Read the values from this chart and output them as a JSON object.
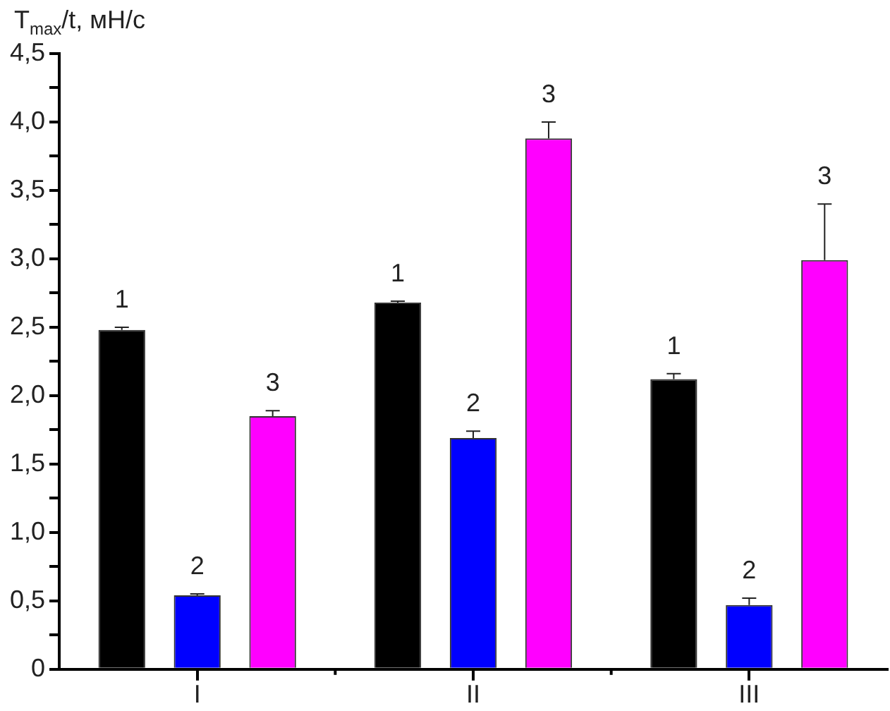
{
  "chart_data": {
    "type": "bar",
    "ylabel": "T$_{max}$/t, мН/с",
    "categories": [
      "I",
      "II",
      "III"
    ],
    "series": [
      {
        "name": "1",
        "color": "#000000",
        "values": [
          2.48,
          2.68,
          2.12
        ],
        "errors": [
          [
            2.48,
            2.5
          ],
          [
            2.68,
            2.69
          ],
          [
            2.12,
            2.16
          ]
        ]
      },
      {
        "name": "2",
        "color": "#0000ff",
        "values": [
          0.54,
          1.69,
          0.47
        ],
        "errors": [
          [
            0.54,
            0.55
          ],
          [
            1.69,
            1.74
          ],
          [
            0.47,
            0.52
          ]
        ]
      },
      {
        "name": "3",
        "color": "#ff00ff",
        "values": [
          1.85,
          3.88,
          2.99
        ],
        "errors": [
          [
            1.85,
            1.89
          ],
          [
            3.88,
            4.0
          ],
          [
            2.99,
            3.4
          ]
        ]
      }
    ],
    "ylim": [
      0,
      4.5
    ],
    "yticks": [
      0,
      {
        "value": 0.25,
        "label": null
      },
      {
        "value": 0.5,
        "label": "0,5"
      },
      {
        "value": 0.75,
        "label": null
      },
      {
        "value": 1,
        "label": "1,0"
      },
      {
        "value": 1.25,
        "label": null
      },
      {
        "value": 1.5,
        "label": "1,5"
      },
      {
        "value": 1.75,
        "label": null
      },
      {
        "value": 2,
        "label": "2,0"
      },
      {
        "value": 2.25,
        "label": null
      },
      {
        "value": 2.5,
        "label": "2,5"
      },
      {
        "value": 2.75,
        "label": null
      },
      {
        "value": 3,
        "label": "3,0"
      },
      {
        "value": 3.25,
        "label": null
      },
      {
        "value": 3.5,
        "label": "3,5"
      },
      {
        "value": 3.75,
        "label": null
      },
      {
        "value": 4,
        "label": "4,0"
      },
      {
        "value": 4.25,
        "label": null
      },
      {
        "value": 4.5,
        "label": "4,5"
      }
    ],
    "grid": false,
    "legend": false
  }
}
